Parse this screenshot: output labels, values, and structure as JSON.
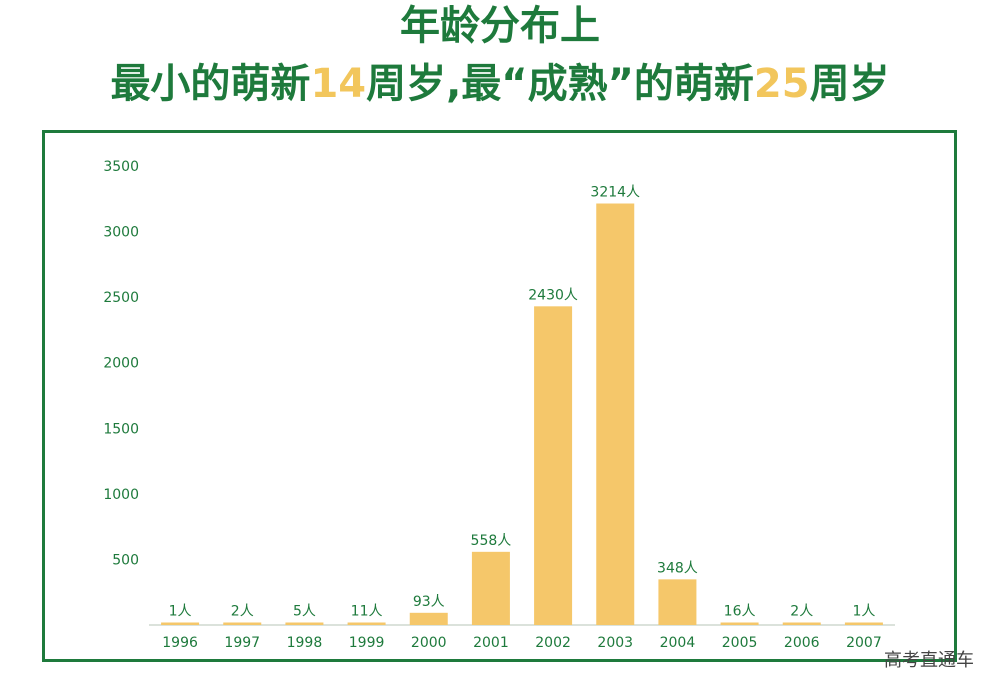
{
  "title": {
    "line1": "年龄分布上",
    "line2_a": "最小的萌新",
    "line2_age_min": "14",
    "line2_b": "周岁,最“成熟”的萌新",
    "line2_age_max": "25",
    "line2_c": "周岁"
  },
  "watermark": "高考直通车",
  "colors": {
    "accent_green": "#1e7a3c",
    "bar_yellow": "#f5c76a",
    "highlight_yellow": "#f2c65c"
  },
  "chart_data": {
    "type": "bar",
    "categories": [
      "1996",
      "1997",
      "1998",
      "1999",
      "2000",
      "2001",
      "2002",
      "2003",
      "2004",
      "2005",
      "2006",
      "2007"
    ],
    "values": [
      1,
      2,
      5,
      11,
      93,
      558,
      2430,
      3214,
      348,
      16,
      2,
      1
    ],
    "data_labels": [
      "1人",
      "2人",
      "5人",
      "11人",
      "93人",
      "558人",
      "2430人",
      "3214人",
      "348人",
      "16人",
      "2人",
      "1人"
    ],
    "y_ticks": [
      "500",
      "1000",
      "1500",
      "2000",
      "2500",
      "3000",
      "3500"
    ],
    "ylim": [
      0,
      3500
    ],
    "grid": false,
    "legend": "none"
  }
}
